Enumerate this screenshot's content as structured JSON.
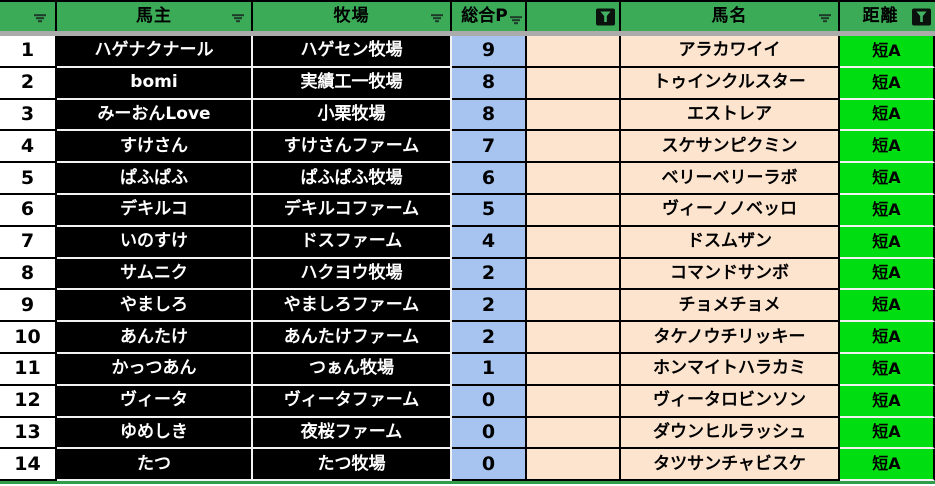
{
  "table": {
    "columns": [
      {
        "key": "num",
        "label": "",
        "filter": "lines"
      },
      {
        "key": "owner",
        "label": "馬主",
        "filter": "lines"
      },
      {
        "key": "ranch",
        "label": "牧場",
        "filter": "lines"
      },
      {
        "key": "points",
        "label": "総合P",
        "filter": "lines"
      },
      {
        "key": "blank",
        "label": "",
        "filter": "funnel"
      },
      {
        "key": "name",
        "label": "馬名",
        "filter": "lines"
      },
      {
        "key": "distance",
        "label": "距離",
        "filter": "funnel"
      }
    ],
    "rows": [
      {
        "num": "1",
        "owner": "ハゲナクナール",
        "ranch": "ハゲセン牧場",
        "points": "9",
        "blank": "",
        "name": "アラカワイイ",
        "distance": "短A"
      },
      {
        "num": "2",
        "owner": "bomi",
        "ranch": "実績工一牧場",
        "points": "8",
        "blank": "",
        "name": "トゥインクルスター",
        "distance": "短A"
      },
      {
        "num": "3",
        "owner": "みーおんLove",
        "ranch": "小栗牧場",
        "points": "8",
        "blank": "",
        "name": "エストレア",
        "distance": "短A"
      },
      {
        "num": "4",
        "owner": "すけさん",
        "ranch": "すけさんファーム",
        "points": "7",
        "blank": "",
        "name": "スケサンピクミン",
        "distance": "短A"
      },
      {
        "num": "5",
        "owner": "ぱふぱふ",
        "ranch": "ぱふぱふ牧場",
        "points": "6",
        "blank": "",
        "name": "ベリーベリーラボ",
        "distance": "短A"
      },
      {
        "num": "6",
        "owner": "デキルコ",
        "ranch": "デキルコファーム",
        "points": "5",
        "blank": "",
        "name": "ヴィーノノベッロ",
        "distance": "短A"
      },
      {
        "num": "7",
        "owner": "いのすけ",
        "ranch": "ドスファーム",
        "points": "4",
        "blank": "",
        "name": "ドスムザン",
        "distance": "短A"
      },
      {
        "num": "8",
        "owner": "サムニク",
        "ranch": "ハクヨウ牧場",
        "points": "2",
        "blank": "",
        "name": "コマンドサンボ",
        "distance": "短A"
      },
      {
        "num": "9",
        "owner": "やましろ",
        "ranch": "やましろファーム",
        "points": "2",
        "blank": "",
        "name": "チョメチョメ",
        "distance": "短A"
      },
      {
        "num": "10",
        "owner": "あんたけ",
        "ranch": "あんたけファーム",
        "points": "2",
        "blank": "",
        "name": "タケノウチリッキー",
        "distance": "短A"
      },
      {
        "num": "11",
        "owner": "かっつあん",
        "ranch": "つぁん牧場",
        "points": "1",
        "blank": "",
        "name": "ホンマイトハラカミ",
        "distance": "短A"
      },
      {
        "num": "12",
        "owner": "ヴィータ",
        "ranch": "ヴィータファーム",
        "points": "0",
        "blank": "",
        "name": "ヴィータロビンソン",
        "distance": "短A"
      },
      {
        "num": "13",
        "owner": "ゆめしき",
        "ranch": "夜桜ファーム",
        "points": "0",
        "blank": "",
        "name": "ダウンヒルラッシュ",
        "distance": "短A"
      },
      {
        "num": "14",
        "owner": "たつ",
        "ranch": "たつ牧場",
        "points": "0",
        "blank": "",
        "name": "タツサンチャビスケ",
        "distance": "短A"
      }
    ]
  },
  "icons": {
    "filter_dropdown": "filter-dropdown-icon",
    "filter_active": "filter-active-funnel-icon"
  },
  "colors": {
    "header_green": "#3BAB58",
    "distance_green": "#00DE11",
    "points_blue": "#A6C4EF",
    "name_peach": "#FCE4CF",
    "cell_black": "#000000",
    "grid_white": "#F2F2F2",
    "divider_gray": "#ABABAB",
    "bottom_green": "#2E9E4B"
  }
}
